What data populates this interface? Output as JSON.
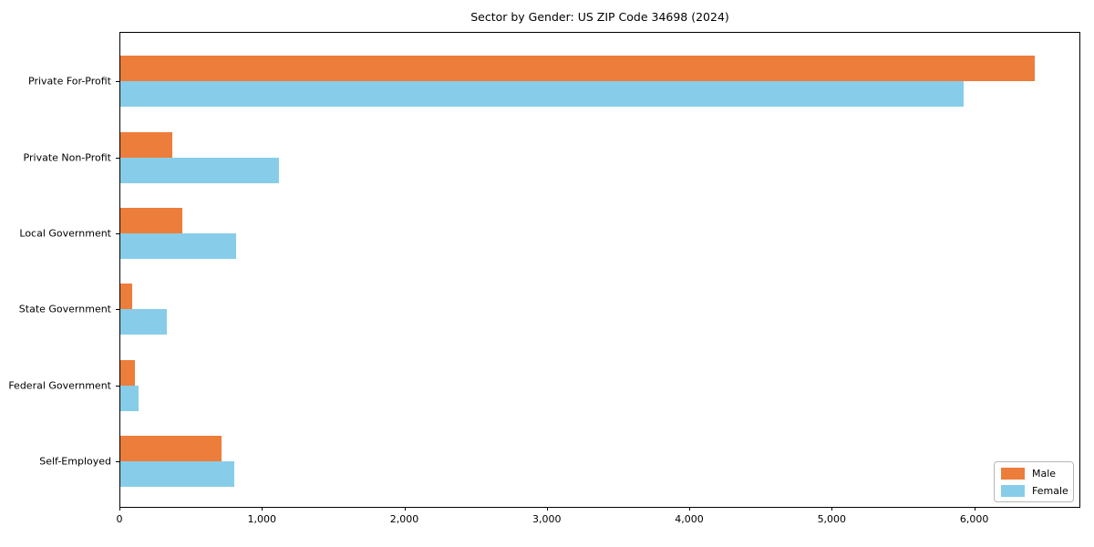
{
  "chart_data": {
    "type": "bar",
    "orientation": "horizontal",
    "title": "Sector by Gender: US ZIP Code 34698 (2024)",
    "categories": [
      "Private For-Profit",
      "Private Non-Profit",
      "Local Government",
      "State Government",
      "Federal Government",
      "Self-Employed"
    ],
    "series": [
      {
        "name": "Male",
        "color": "#ed7d3a",
        "values": [
          6433,
          363,
          435,
          83,
          104,
          712
        ]
      },
      {
        "name": "Female",
        "color": "#87cde9",
        "values": [
          5932,
          1117,
          814,
          324,
          126,
          804
        ]
      }
    ],
    "xlabel": "",
    "ylabel": "",
    "xlim": [
      0,
      6745
    ],
    "xticks": {
      "values": [
        0,
        1000,
        2000,
        3000,
        4000,
        5000,
        6000
      ],
      "labels": [
        "0",
        "1,000",
        "2,000",
        "3,000",
        "4,000",
        "5,000",
        "6,000"
      ]
    },
    "grid": false,
    "legend_position": "lower right",
    "colors": {
      "male": "#ed7d3a",
      "female": "#87cde9",
      "spine": "#000000",
      "background": "#ffffff"
    }
  }
}
